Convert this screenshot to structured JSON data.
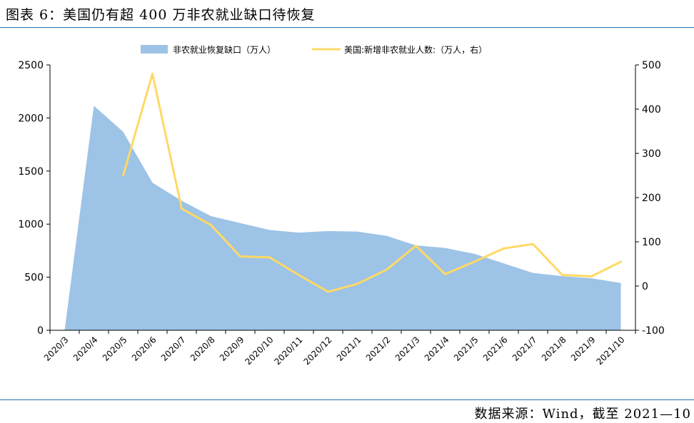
{
  "figure": {
    "title": "图表 6：美国仍有超 400 万非农就业缺口待恢复",
    "source": "数据来源：Wind，截至 2021—10"
  },
  "chart_data": {
    "type": "area",
    "categories": [
      "2020/3",
      "2020/4",
      "2020/5",
      "2020/6",
      "2020/7",
      "2020/8",
      "2020/9",
      "2020/10",
      "2020/11",
      "2020/12",
      "2021/1",
      "2021/2",
      "2021/3",
      "2021/4",
      "2021/5",
      "2021/6",
      "2021/7",
      "2021/8",
      "2021/9",
      "2021/10"
    ],
    "series": [
      {
        "name": "非农就业恢复缺口（万人）",
        "type": "area",
        "axis": "left",
        "color": "#9dc3e6",
        "values": [
          0,
          2115,
          1870,
          1390,
          1220,
          1075,
          1010,
          945,
          920,
          935,
          930,
          890,
          800,
          775,
          720,
          630,
          540,
          510,
          490,
          445
        ]
      },
      {
        "name": "美国:新增非农就业人数:（万人，右）",
        "type": "line",
        "axis": "right",
        "color": "#ffd966",
        "values": [
          null,
          null,
          250,
          480,
          175,
          138,
          67,
          65,
          25,
          -13,
          5,
          37,
          91,
          27,
          55,
          85,
          95,
          25,
          22,
          55
        ]
      }
    ],
    "y_left": {
      "min": 0,
      "max": 2500,
      "ticks": [
        0,
        500,
        1000,
        1500,
        2000,
        2500
      ]
    },
    "y_right": {
      "min": -100,
      "max": 500,
      "ticks": [
        -100,
        0,
        100,
        200,
        300,
        400,
        500
      ]
    },
    "legend": "top-center",
    "grid": false
  }
}
